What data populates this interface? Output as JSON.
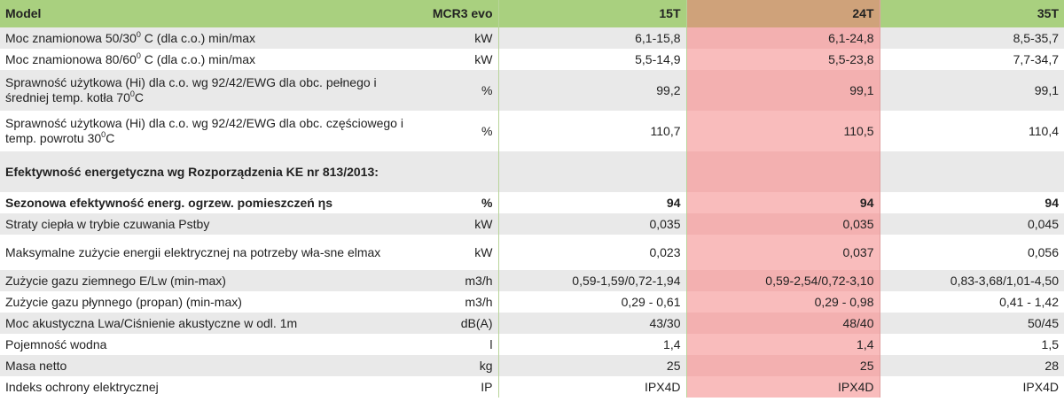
{
  "table": {
    "header": {
      "model": "Model",
      "series": "MCR3 evo",
      "col_15": "15T",
      "col_24": "24T",
      "col_35": "35T"
    },
    "rows": [
      {
        "pre": "Moc znamionowa 50/30",
        "sup": "0",
        "post": " C (dla c.o.) min/max",
        "unit": "kW",
        "v15": "6,1-15,8",
        "v24": "6,1-24,8",
        "v35": "8,5-35,7"
      },
      {
        "pre": "Moc znamionowa 80/60",
        "sup": "0",
        "post": " C (dla c.o.) min/max",
        "unit": "kW",
        "v15": "5,5-14,9",
        "v24": "5,5-23,8",
        "v35": "7,7-34,7"
      },
      {
        "pre": "Sprawność użytkowa (Hi) dla c.o. wg 92/42/EWG dla obc. pełnego i średniej temp. kotła 70",
        "sup": "0",
        "post": "C",
        "unit": "%",
        "v15": "99,2",
        "v24": "99,1",
        "v35": "99,1"
      },
      {
        "pre": "Sprawność użytkowa (Hi) dla c.o. wg 92/42/EWG dla obc. częściowego i temp. powrotu 30",
        "sup": "0",
        "post": "C",
        "unit": "%",
        "v15": "110,7",
        "v24": "110,5",
        "v35": "110,4"
      },
      {
        "pre": "Efektywność energetyczna wg Rozporządzenia KE nr 813/2013:",
        "unit": "",
        "v15": "",
        "v24": "",
        "v35": ""
      },
      {
        "pre": "Sezonowa efektywność energ. ogrzew. pomieszczeń ηs",
        "unit": "%",
        "v15": "94",
        "v24": "94",
        "v35": "94"
      },
      {
        "pre": "Straty ciepła w trybie czuwania Pstby",
        "unit": "kW",
        "v15": "0,035",
        "v24": "0,035",
        "v35": "0,045"
      },
      {
        "pre": "Maksymalne zużycie energii elektrycznej na potrzeby wła-sne elmax",
        "unit": "kW",
        "v15": "0,023",
        "v24": "0,037",
        "v35": "0,056"
      },
      {
        "pre": "Zużycie gazu ziemnego E/Lw (min-max)",
        "unit": "m3/h",
        "v15": "0,59-1,59/0,72-1,94",
        "v24": "0,59-2,54/0,72-3,10",
        "v35": "0,83-3,68/1,01-4,50"
      },
      {
        "pre": "Zużycie gazu płynnego (propan) (min-max)",
        "unit": "m3/h",
        "v15": "0,29 - 0,61",
        "v24": "0,29 - 0,98",
        "v35": "0,41 - 1,42"
      },
      {
        "pre": "Moc akustyczna Lwa/Ciśnienie akustyczne w odl. 1m",
        "unit": "dB(A)",
        "v15": "43/30",
        "v24": "48/40",
        "v35": "50/45"
      },
      {
        "pre": "Pojemność wodna",
        "unit": "l",
        "v15": "1,4",
        "v24": "1,4",
        "v35": "1,5"
      },
      {
        "pre": "Masa netto",
        "unit": "kg",
        "v15": "25",
        "v24": "25",
        "v35": "28"
      },
      {
        "pre": "Indeks ochrony elektrycznej",
        "unit": "IP",
        "v15": "IPX4D",
        "v24": "IPX4D",
        "v35": "IPX4D"
      }
    ]
  }
}
